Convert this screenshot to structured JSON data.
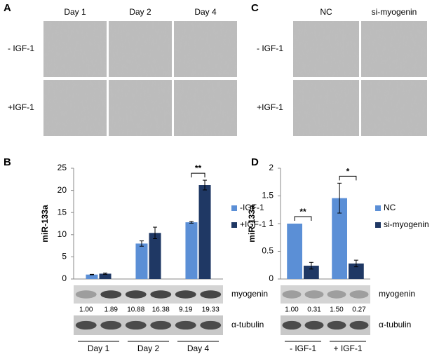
{
  "panel_labels": [
    "A",
    "B",
    "C",
    "D"
  ],
  "panel_a": {
    "columns": [
      "Day 1",
      "Day 2",
      "Day 4"
    ],
    "rows": [
      "- IGF-1",
      "+IGF-1"
    ]
  },
  "panel_c": {
    "columns": [
      "NC",
      "si-myogenin"
    ],
    "rows": [
      "- IGF-1",
      "+IGF-1"
    ]
  },
  "chart_data": [
    {
      "type": "bar",
      "y_label": "miR-133a",
      "categories": [
        "Day 1",
        "Day 2",
        "Day 4"
      ],
      "series": [
        {
          "name": "-IGF-1",
          "color": "#5b8fd6",
          "values": [
            1.0,
            8.0,
            12.8
          ],
          "errors": [
            0.05,
            0.6,
            0.2
          ]
        },
        {
          "name": "+IGF-1",
          "color": "#1f3864",
          "values": [
            1.2,
            10.4,
            21.2
          ],
          "errors": [
            0.15,
            1.3,
            1.1
          ]
        }
      ],
      "ylim": [
        0,
        25
      ],
      "yticks": [
        0,
        5,
        10,
        15,
        20,
        25
      ],
      "annotations": [
        "**"
      ],
      "legend": "right"
    },
    {
      "type": "bar",
      "y_label": "miR-133a",
      "categories": [
        "- IGF-1",
        "+ IGF-1"
      ],
      "series": [
        {
          "name": "NC",
          "color": "#5b8fd6",
          "values": [
            1.0,
            1.46
          ],
          "errors": [
            0,
            0.27
          ]
        },
        {
          "name": "si-myogenin",
          "color": "#1f3864",
          "values": [
            0.24,
            0.28
          ],
          "errors": [
            0.06,
            0.06
          ]
        }
      ],
      "ylim": [
        0,
        2
      ],
      "yticks": [
        0,
        0.5,
        1,
        1.5,
        2
      ],
      "annotations": [
        "**",
        "*"
      ],
      "legend": "right"
    }
  ],
  "blot_b": {
    "bands": [
      "myogenin",
      "α-tubulin"
    ],
    "quantities": [
      "1.00",
      "1.89",
      "10.88",
      "16.38",
      "9.19",
      "19.33"
    ]
  },
  "blot_d": {
    "bands": [
      "myogenin",
      "α-tubulin"
    ],
    "quantities": [
      "1.00",
      "0.31",
      "1.50",
      "0.27"
    ]
  }
}
